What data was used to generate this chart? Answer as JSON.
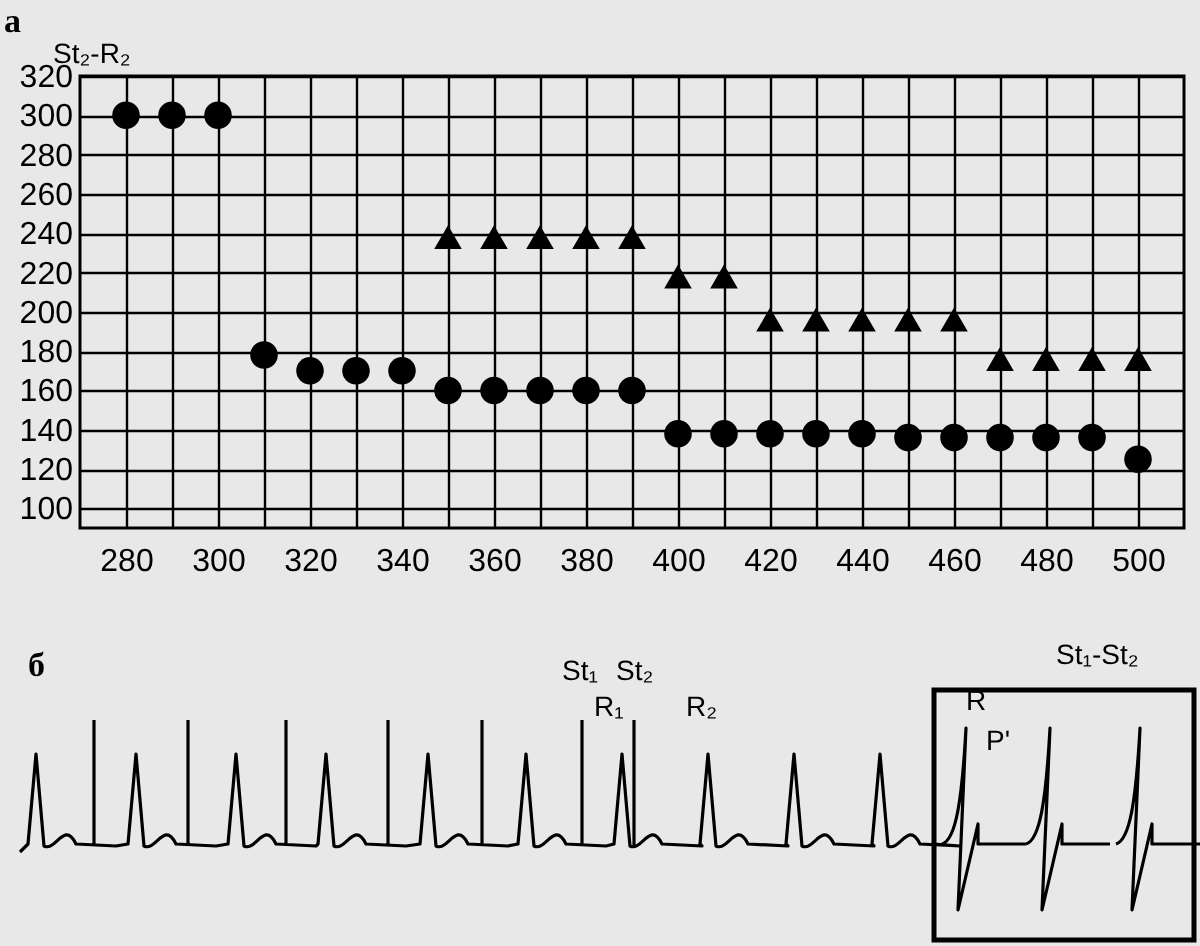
{
  "chart_data": [
    {
      "type": "scatter",
      "title": "а",
      "ylabel": "St₂-R₂",
      "x": [
        280,
        290,
        300,
        310,
        320,
        330,
        340,
        350,
        360,
        370,
        380,
        390,
        400,
        410,
        420,
        430,
        440,
        450,
        460,
        470,
        480,
        490,
        500
      ],
      "series": [
        {
          "color": "#000000",
          "marker": "circle",
          "values": [
            300,
            300,
            300,
            178,
            170,
            170,
            170,
            160,
            160,
            160,
            160,
            160,
            138,
            138,
            138,
            138,
            138,
            136,
            136,
            136,
            136,
            136,
            125
          ]
        },
        {
          "color": "#000000",
          "marker": "triangle",
          "values": [
            null,
            null,
            null,
            null,
            null,
            null,
            null,
            238,
            238,
            238,
            238,
            238,
            218,
            218,
            196,
            196,
            196,
            196,
            196,
            176,
            176,
            176,
            176
          ]
        }
      ],
      "xlim": [
        270,
        510
      ],
      "ylim": [
        90,
        320
      ],
      "xticks": [
        280,
        {
          "value": 290,
          "label": null
        },
        300,
        {
          "value": 310,
          "label": null
        },
        320,
        {
          "value": 330,
          "label": null
        },
        340,
        {
          "value": 350,
          "label": null
        },
        360,
        {
          "value": 370,
          "label": null
        },
        380,
        {
          "value": 390,
          "label": null
        },
        400,
        {
          "value": 410,
          "label": null
        },
        420,
        {
          "value": 430,
          "label": null
        },
        440,
        {
          "value": 450,
          "label": null
        },
        460,
        {
          "value": 470,
          "label": null
        },
        480,
        {
          "value": 490,
          "label": null
        },
        500
      ],
      "yticks": [
        100,
        120,
        140,
        160,
        180,
        200,
        220,
        240,
        260,
        280,
        300,
        320
      ],
      "grid": true
    },
    {
      "type": "other",
      "title": "б",
      "annotations": [
        "St₁",
        "St₂",
        "R₁",
        "R₂",
        "St₁-St₂",
        "R",
        "P'"
      ]
    }
  ]
}
